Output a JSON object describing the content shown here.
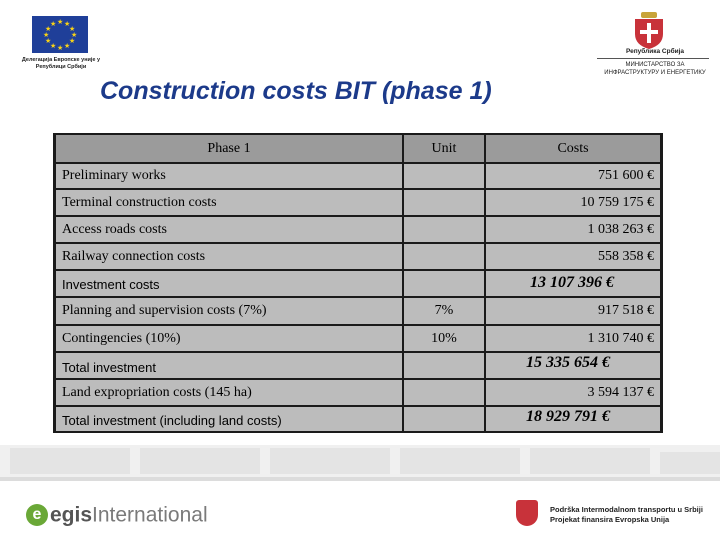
{
  "header": {
    "eu_caption": "Делегација Европске уније у Републици Србији",
    "rs_caption_top": "Република Србија",
    "rs_caption_bottom": "МИНИСТАРСТВО ЗА ИНФРАСТРУКТУРУ И ЕНЕРГЕТИКУ"
  },
  "slide": {
    "title": "Construction costs BIT (phase 1)"
  },
  "table": {
    "headers": {
      "phase": "Phase 1",
      "unit": "Unit",
      "costs": "Costs"
    },
    "rows": [
      {
        "label": "Preliminary works",
        "unit": "",
        "cost": "751 600 €"
      },
      {
        "label": "Terminal construction costs",
        "unit": "",
        "cost": "10 759 175 €"
      },
      {
        "label": "Access roads costs",
        "unit": "",
        "cost": "1 038 263 €"
      },
      {
        "label": "Railway connection costs",
        "unit": "",
        "cost": "558 358 €"
      },
      {
        "label": "Investment costs",
        "unit": "",
        "cost": "13 107 396 €"
      },
      {
        "label": "Planning and supervision costs (7%)",
        "unit": "7%",
        "cost": "917 518 €"
      },
      {
        "label": "Contingencies (10%)",
        "unit": "10%",
        "cost": "1 310 740 €"
      },
      {
        "label": "Total investment",
        "unit": "",
        "cost": "15 335 654 €"
      },
      {
        "label": "Land expropriation costs (145 ha)",
        "unit": "",
        "cost": "3 594 137 €"
      },
      {
        "label": "Total investment (including land costs)",
        "unit": "",
        "cost": "18 929 791 €"
      }
    ]
  },
  "footer": {
    "brand_word1": "egis",
    "brand_word2": "International",
    "line1": "Podrška Intermodalnom transportu u Srbiji",
    "line2": "Projekat finansira Evropska Unija"
  },
  "colors": {
    "title": "#1c3a8a",
    "table_cell": "#bcbcbc",
    "table_header": "#9b9b9b",
    "table_border": "#1a1a1a",
    "eu_blue": "#1f3f99",
    "eu_star": "#f7d117",
    "egis_green": "#6aa837"
  }
}
